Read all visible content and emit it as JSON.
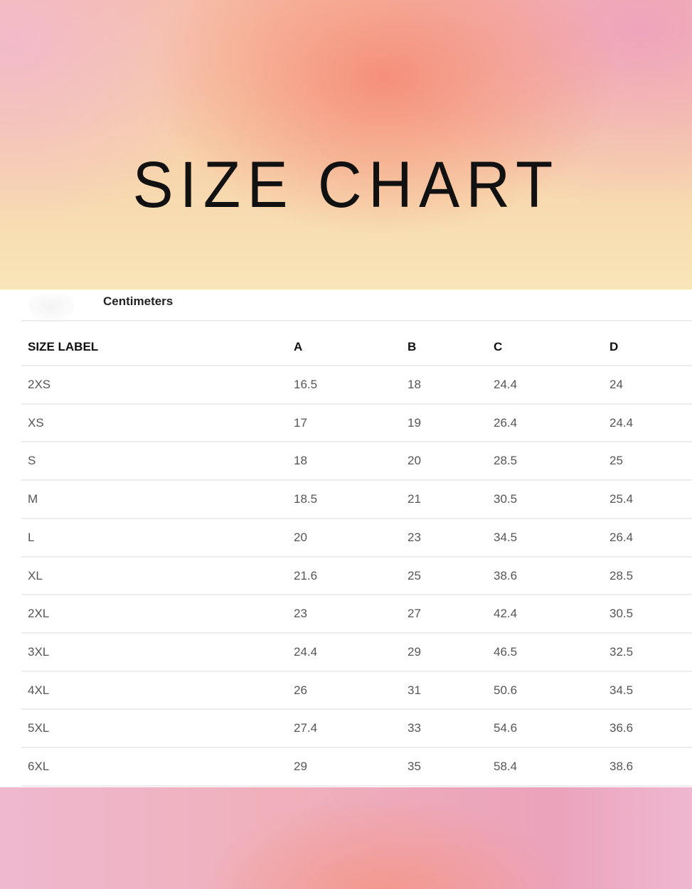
{
  "title": "SIZE CHART",
  "unit_label": "Centimeters",
  "table": {
    "headers": [
      "SIZE LABEL",
      "A",
      "B",
      "C",
      "D"
    ],
    "rows": [
      [
        "2XS",
        "16.5",
        "18",
        "24.4",
        "24"
      ],
      [
        "XS",
        "17",
        "19",
        "26.4",
        "24.4"
      ],
      [
        "S",
        "18",
        "20",
        "28.5",
        "25"
      ],
      [
        "M",
        "18.5",
        "21",
        "30.5",
        "25.4"
      ],
      [
        "L",
        "20",
        "23",
        "34.5",
        "26.4"
      ],
      [
        "XL",
        "21.6",
        "25",
        "38.6",
        "28.5"
      ],
      [
        "2XL",
        "23",
        "27",
        "42.4",
        "30.5"
      ],
      [
        "3XL",
        "24.4",
        "29",
        "46.5",
        "32.5"
      ],
      [
        "4XL",
        "26",
        "31",
        "50.6",
        "34.5"
      ],
      [
        "5XL",
        "27.4",
        "33",
        "54.6",
        "36.6"
      ],
      [
        "6XL",
        "29",
        "35",
        "58.4",
        "38.6"
      ]
    ]
  }
}
